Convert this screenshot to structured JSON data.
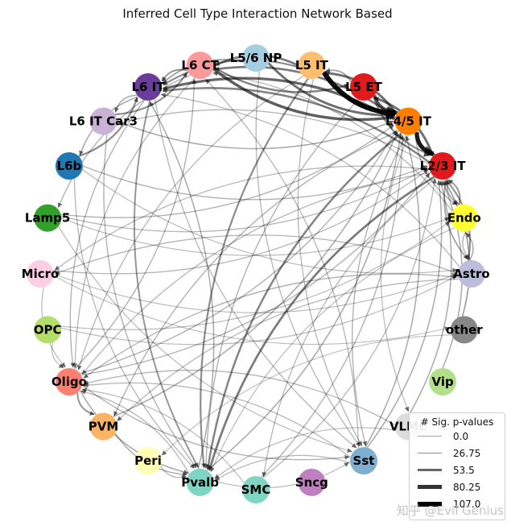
{
  "title": "Inferred Cell Type Interaction Network Based",
  "legend": {
    "title": "# Sig. p-values",
    "items": [
      {
        "label": "0.0",
        "width": 0.8,
        "alpha": 0.35
      },
      {
        "label": "26.75",
        "width": 1.6,
        "alpha": 0.45
      },
      {
        "label": "53.5",
        "width": 3,
        "alpha": 0.6
      },
      {
        "label": "80.25",
        "width": 4.5,
        "alpha": 0.8
      },
      {
        "label": "107.0",
        "width": 6,
        "alpha": 1.0
      }
    ]
  },
  "watermark": "知乎 @Evil Genius",
  "nodes": [
    {
      "id": "L5/6 NP",
      "color": "#a6cee3"
    },
    {
      "id": "L5 IT",
      "color": "#fdbf6f"
    },
    {
      "id": "L5 ET",
      "color": "#e31a1c"
    },
    {
      "id": "L4/5 IT",
      "color": "#ff7f00"
    },
    {
      "id": "L2/3 IT",
      "color": "#e31a1c"
    },
    {
      "id": "Endo",
      "color": "#ffff33"
    },
    {
      "id": "Astro",
      "color": "#bcbddc"
    },
    {
      "id": "other",
      "color": "#888888"
    },
    {
      "id": "Vip",
      "color": "#b2df8a"
    },
    {
      "id": "VLMC",
      "color": "#dddddd"
    },
    {
      "id": "Sst",
      "color": "#7fafd0"
    },
    {
      "id": "Sncg",
      "color": "#c080c0"
    },
    {
      "id": "SMC",
      "color": "#7fd5c3"
    },
    {
      "id": "Pvalb",
      "color": "#7fd5c3"
    },
    {
      "id": "Peri",
      "color": "#ffffb3"
    },
    {
      "id": "PVM",
      "color": "#fdb462"
    },
    {
      "id": "Oligo",
      "color": "#fb8072"
    },
    {
      "id": "OPC",
      "color": "#b3de69"
    },
    {
      "id": "Micro",
      "color": "#fccde5"
    },
    {
      "id": "Lamp5",
      "color": "#33a02c"
    },
    {
      "id": "L6b",
      "color": "#1f78b4"
    },
    {
      "id": "L6 IT Car3",
      "color": "#cab2d6"
    },
    {
      "id": "L6 IT",
      "color": "#6a3d9a"
    },
    {
      "id": "L6 CT",
      "color": "#fb9a99"
    }
  ],
  "chart_data": {
    "type": "network",
    "title": "Inferred Cell Type Interaction Network Based",
    "legend_title": "# Sig. p-values",
    "legend_values": [
      0.0,
      26.75,
      53.5,
      80.25,
      107.0
    ],
    "edges": [
      {
        "source": "L5 IT",
        "target": "L4/5 IT",
        "weight": 107
      },
      {
        "source": "L4/5 IT",
        "target": "L2/3 IT",
        "weight": 90
      },
      {
        "source": "L5 ET",
        "target": "L4/5 IT",
        "weight": 60
      },
      {
        "source": "L6 CT",
        "target": "L4/5 IT",
        "weight": 55
      },
      {
        "source": "L5/6 NP",
        "target": "L4/5 IT",
        "weight": 45
      },
      {
        "source": "L4/5 IT",
        "target": "L6 IT",
        "weight": 50
      },
      {
        "source": "L4/5 IT",
        "target": "L5 IT",
        "weight": 45
      },
      {
        "source": "L2/3 IT",
        "target": "L5 ET",
        "weight": 45
      },
      {
        "source": "L5 IT",
        "target": "L6 CT",
        "weight": 40
      },
      {
        "source": "L4/5 IT",
        "target": "L6 CT",
        "weight": 40
      },
      {
        "source": "L2/3 IT",
        "target": "L6 IT",
        "weight": 35
      },
      {
        "source": "L6 CT",
        "target": "L5 ET",
        "weight": 35
      },
      {
        "source": "L6b",
        "target": "L6 IT",
        "weight": 30
      },
      {
        "source": "L6 IT Car3",
        "target": "L6 CT",
        "weight": 28
      },
      {
        "source": "L2/3 IT",
        "target": "Pvalb",
        "weight": 40
      },
      {
        "source": "L4/5 IT",
        "target": "Pvalb",
        "weight": 35
      },
      {
        "source": "L5 IT",
        "target": "Pvalb",
        "weight": 30
      },
      {
        "source": "L6 IT",
        "target": "Pvalb",
        "weight": 25
      },
      {
        "source": "Astro",
        "target": "L2/3 IT",
        "weight": 28
      },
      {
        "source": "Endo",
        "target": "L2/3 IT",
        "weight": 25
      },
      {
        "source": "other",
        "target": "L2/3 IT",
        "weight": 20
      },
      {
        "source": "Vip",
        "target": "L2/3 IT",
        "weight": 15
      },
      {
        "source": "VLMC",
        "target": "L2/3 IT",
        "weight": 15
      },
      {
        "source": "Sst",
        "target": "L2/3 IT",
        "weight": 15
      },
      {
        "source": "Sst",
        "target": "L4/5 IT",
        "weight": 15
      },
      {
        "source": "SMC",
        "target": "L4/5 IT",
        "weight": 12
      },
      {
        "source": "PVM",
        "target": "L4/5 IT",
        "weight": 15
      },
      {
        "source": "Oligo",
        "target": "L4/5 IT",
        "weight": 12
      },
      {
        "source": "Lamp5",
        "target": "L4/5 IT",
        "weight": 12
      },
      {
        "source": "OPC",
        "target": "Astro",
        "weight": 8
      },
      {
        "source": "OPC",
        "target": "Endo",
        "weight": 8
      },
      {
        "source": "Micro",
        "target": "Astro",
        "weight": 8
      },
      {
        "source": "Micro",
        "target": "other",
        "weight": 6
      },
      {
        "source": "Lamp5",
        "target": "Endo",
        "weight": 8
      },
      {
        "source": "L6b",
        "target": "Astro",
        "weight": 8
      },
      {
        "source": "L6 CT",
        "target": "L6 IT",
        "weight": 25
      },
      {
        "source": "L6 IT",
        "target": "L6 IT Car3",
        "weight": 15
      },
      {
        "source": "L6 IT",
        "target": "L6b",
        "weight": 15
      },
      {
        "source": "L6 CT",
        "target": "Lamp5",
        "weight": 12
      },
      {
        "source": "L6 IT",
        "target": "Oligo",
        "weight": 12
      },
      {
        "source": "L5 IT",
        "target": "Oligo",
        "weight": 10
      },
      {
        "source": "L2/3 IT",
        "target": "Oligo",
        "weight": 10
      },
      {
        "source": "Pvalb",
        "target": "Oligo",
        "weight": 10
      },
      {
        "source": "Sst",
        "target": "Oligo",
        "weight": 10
      },
      {
        "source": "VLMC",
        "target": "Oligo",
        "weight": 10
      },
      {
        "source": "Astro",
        "target": "Oligo",
        "weight": 12
      },
      {
        "source": "Astro",
        "target": "PVM",
        "weight": 10
      },
      {
        "source": "Oligo",
        "target": "PVM",
        "weight": 25
      },
      {
        "source": "L4/5 IT",
        "target": "PVM",
        "weight": 12
      },
      {
        "source": "Astro",
        "target": "Micro",
        "weight": 10
      },
      {
        "source": "L2/3 IT",
        "target": "Micro",
        "weight": 10
      },
      {
        "source": "Oligo",
        "target": "Pvalb",
        "weight": 15
      },
      {
        "source": "PVM",
        "target": "Pvalb",
        "weight": 15
      },
      {
        "source": "Peri",
        "target": "Pvalb",
        "weight": 10
      },
      {
        "source": "L6 IT Car3",
        "target": "Pvalb",
        "weight": 12
      },
      {
        "source": "L6b",
        "target": "Pvalb",
        "weight": 10
      },
      {
        "source": "L5 ET",
        "target": "Pvalb",
        "weight": 12
      },
      {
        "source": "L5/6 NP",
        "target": "Sst",
        "weight": 10
      },
      {
        "source": "L4/5 IT",
        "target": "Sst",
        "weight": 12
      },
      {
        "source": "L6 IT",
        "target": "Sst",
        "weight": 10
      },
      {
        "source": "Oligo",
        "target": "Sst",
        "weight": 12
      },
      {
        "source": "Lamp5",
        "target": "Sst",
        "weight": 8
      },
      {
        "source": "L5 IT",
        "target": "Sst",
        "weight": 10
      },
      {
        "source": "L2/3 IT",
        "target": "SMC",
        "weight": 10
      },
      {
        "source": "L4/5 IT",
        "target": "VLMC",
        "weight": 8
      },
      {
        "source": "Pvalb",
        "target": "L6 IT",
        "weight": 15
      },
      {
        "source": "Sst",
        "target": "L6 CT",
        "weight": 10
      },
      {
        "source": "Oligo",
        "target": "L6 CT",
        "weight": 12
      },
      {
        "source": "L2/3 IT",
        "target": "L6 IT Car3",
        "weight": 10
      },
      {
        "source": "Micro",
        "target": "L2/3 IT",
        "weight": 10
      },
      {
        "source": "Lamp5",
        "target": "L2/3 IT",
        "weight": 10
      },
      {
        "source": "L6b",
        "target": "L2/3 IT",
        "weight": 12
      },
      {
        "source": "L6 IT Car3",
        "target": "L4/5 IT",
        "weight": 15
      },
      {
        "source": "L5 IT",
        "target": "L6 IT",
        "weight": 30
      },
      {
        "source": "L5/6 NP",
        "target": "L6 IT",
        "weight": 20
      },
      {
        "source": "L5 ET",
        "target": "L5 IT",
        "weight": 20
      },
      {
        "source": "Endo",
        "target": "Pvalb",
        "weight": 8
      },
      {
        "source": "other",
        "target": "Peri",
        "weight": 6
      },
      {
        "source": "Micro",
        "target": "Oligo",
        "weight": 8
      },
      {
        "source": "OPC",
        "target": "Oligo",
        "weight": 8
      },
      {
        "source": "L6 CT",
        "target": "Oligo",
        "weight": 10
      },
      {
        "source": "SMC",
        "target": "Oligo",
        "weight": 8
      },
      {
        "source": "Astro",
        "target": "L6 IT",
        "weight": 10
      },
      {
        "source": "Endo",
        "target": "L6 CT",
        "weight": 10
      },
      {
        "source": "Astro",
        "target": "Endo",
        "weight": 15
      },
      {
        "source": "L2/3 IT",
        "target": "Astro",
        "weight": 20
      },
      {
        "source": "Endo",
        "target": "Astro",
        "weight": 12
      },
      {
        "source": "L2/3 IT",
        "target": "Endo",
        "weight": 18
      },
      {
        "source": "L5 ET",
        "target": "L2/3 IT",
        "weight": 30
      },
      {
        "source": "L4/5 IT",
        "target": "Endo",
        "weight": 12
      },
      {
        "source": "Sst",
        "target": "Pvalb",
        "weight": 10
      },
      {
        "source": "Pvalb",
        "target": "Sst",
        "weight": 8
      },
      {
        "source": "VLMC",
        "target": "Pvalb",
        "weight": 8
      },
      {
        "source": "Pvalb",
        "target": "L4/5 IT",
        "weight": 15
      },
      {
        "source": "SMC",
        "target": "L2/3 IT",
        "weight": 10
      },
      {
        "source": "Oligo",
        "target": "L2/3 IT",
        "weight": 12
      }
    ]
  }
}
